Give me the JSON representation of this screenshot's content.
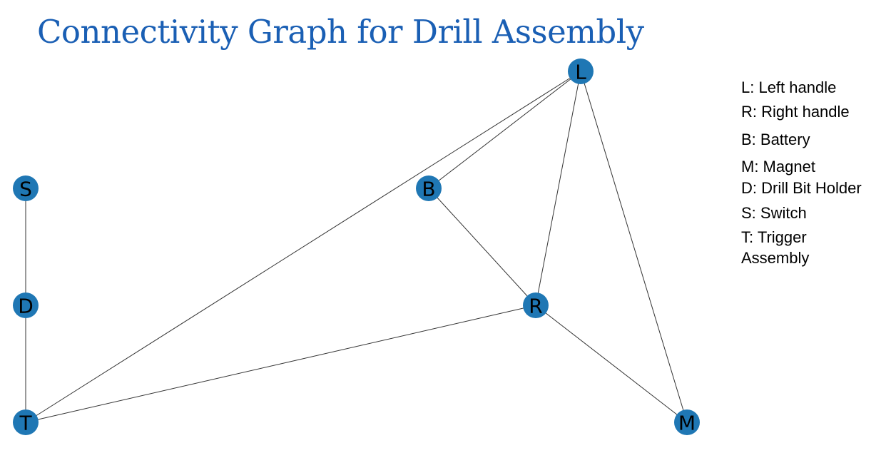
{
  "title": "Connectivity Graph for Drill Assembly",
  "colors": {
    "title": "#1a5fb4",
    "node": "#1f77b4",
    "edge": "#333333"
  },
  "graph": {
    "nodes": [
      {
        "id": "L",
        "label": "L"
      },
      {
        "id": "S",
        "label": "S"
      },
      {
        "id": "B",
        "label": "B"
      },
      {
        "id": "D",
        "label": "D"
      },
      {
        "id": "R",
        "label": "R"
      },
      {
        "id": "T",
        "label": "T"
      },
      {
        "id": "M",
        "label": "M"
      }
    ],
    "edges": [
      [
        "L",
        "B"
      ],
      [
        "L",
        "R"
      ],
      [
        "L",
        "M"
      ],
      [
        "L",
        "T"
      ],
      [
        "B",
        "R"
      ],
      [
        "R",
        "T"
      ],
      [
        "R",
        "M"
      ],
      [
        "S",
        "D"
      ],
      [
        "D",
        "T"
      ]
    ]
  },
  "legend": [
    "L: Left handle",
    "R: Right handle",
    "B: Battery",
    "M: Magnet",
    "D: Drill Bit Holder",
    "S: Switch",
    "T: Trigger Assembly"
  ]
}
